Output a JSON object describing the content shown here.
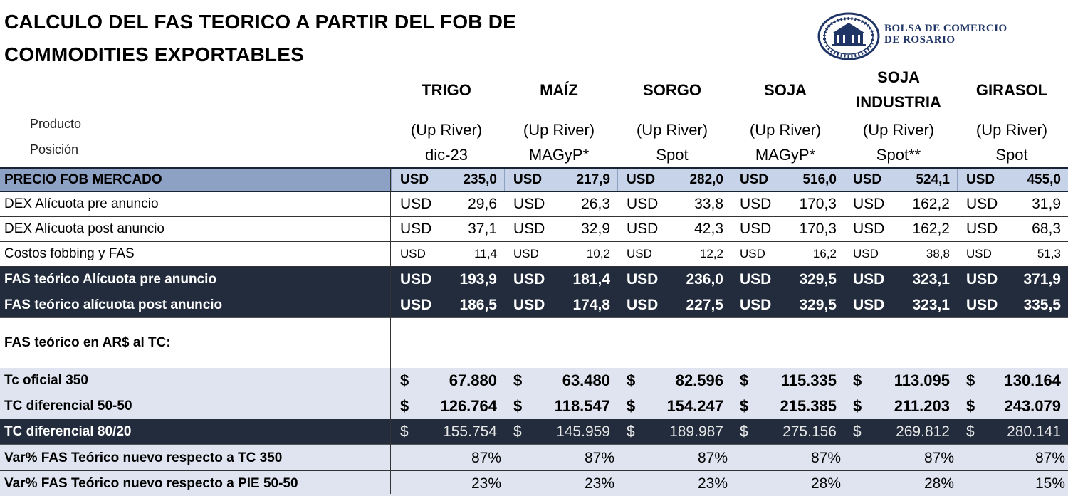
{
  "title_line1": "CALCULO DEL FAS TEORICO A PARTIR DEL FOB DE",
  "title_line2": "COMMODITIES EXPORTABLES",
  "logo": {
    "line1": "BOLSA DE COMERCIO",
    "line2": "DE ROSARIO"
  },
  "labels": {
    "producto": "Producto",
    "posicion": "Posición"
  },
  "columns": [
    {
      "name": "TRIGO",
      "port": "(Up River)",
      "position": "dic-23"
    },
    {
      "name": "MAÍZ",
      "port": "(Up River)",
      "position": "MAGyP*"
    },
    {
      "name": "SORGO",
      "port": "(Up River)",
      "position": "Spot"
    },
    {
      "name": "SOJA",
      "port": "(Up River)",
      "position": "MAGyP*"
    },
    {
      "name": "SOJA INDUSTRIA",
      "name_l1": "SOJA",
      "name_l2": "INDUSTRIA",
      "port": "(Up River)",
      "position": "Spot**"
    },
    {
      "name": "GIRASOL",
      "port": "(Up River)",
      "position": "Spot"
    }
  ],
  "rows": {
    "fob": {
      "label": "PRECIO FOB MERCADO",
      "cur": "USD",
      "values": [
        "235,0",
        "217,9",
        "282,0",
        "516,0",
        "524,1",
        "455,0"
      ]
    },
    "dex_pre": {
      "label": "DEX Alícuota pre anuncio",
      "cur": "USD",
      "values": [
        "29,6",
        "26,3",
        "33,8",
        "170,3",
        "162,2",
        "31,9"
      ]
    },
    "dex_post": {
      "label": "DEX Alícuota post anuncio",
      "cur": "USD",
      "values": [
        "37,1",
        "32,9",
        "42,3",
        "170,3",
        "162,2",
        "68,3"
      ]
    },
    "costos": {
      "label": "Costos fobbing y FAS",
      "cur": "USD",
      "values": [
        "11,4",
        "10,2",
        "12,2",
        "16,2",
        "38,8",
        "51,3"
      ]
    },
    "fas_pre": {
      "label": "FAS teórico Alícuota pre anuncio",
      "cur": "USD",
      "values": [
        "193,9",
        "181,4",
        "236,0",
        "329,5",
        "323,1",
        "371,9"
      ]
    },
    "fas_post": {
      "label": "FAS teórico alícuota post anuncio",
      "cur": "USD",
      "values": [
        "186,5",
        "174,8",
        "227,5",
        "329,5",
        "323,1",
        "335,5"
      ]
    },
    "fas_ars": {
      "label": "FAS teórico en AR$ al TC:"
    },
    "tc_oficial": {
      "label": "Tc oficial 350",
      "cur": "$",
      "values": [
        "67.880",
        "63.480",
        "82.596",
        "115.335",
        "113.095",
        "130.164"
      ]
    },
    "tc_dif_5050": {
      "label": "TC diferencial 50-50",
      "cur": "$",
      "values": [
        "126.764",
        "118.547",
        "154.247",
        "215.385",
        "211.203",
        "243.079"
      ]
    },
    "tc_dif_8020": {
      "label": "TC diferencial 80/20",
      "cur": "$",
      "values": [
        "155.754",
        "145.959",
        "189.987",
        "275.156",
        "269.812",
        "280.141"
      ]
    },
    "var_350": {
      "label": "Var% FAS Teórico nuevo respecto a TC 350",
      "values": [
        "87%",
        "87%",
        "87%",
        "87%",
        "87%",
        "87%"
      ]
    },
    "var_5050": {
      "label": "Var% FAS Teórico nuevo respecto a PIE 50-50",
      "values": [
        "23%",
        "23%",
        "23%",
        "28%",
        "28%",
        "15%"
      ]
    }
  }
}
